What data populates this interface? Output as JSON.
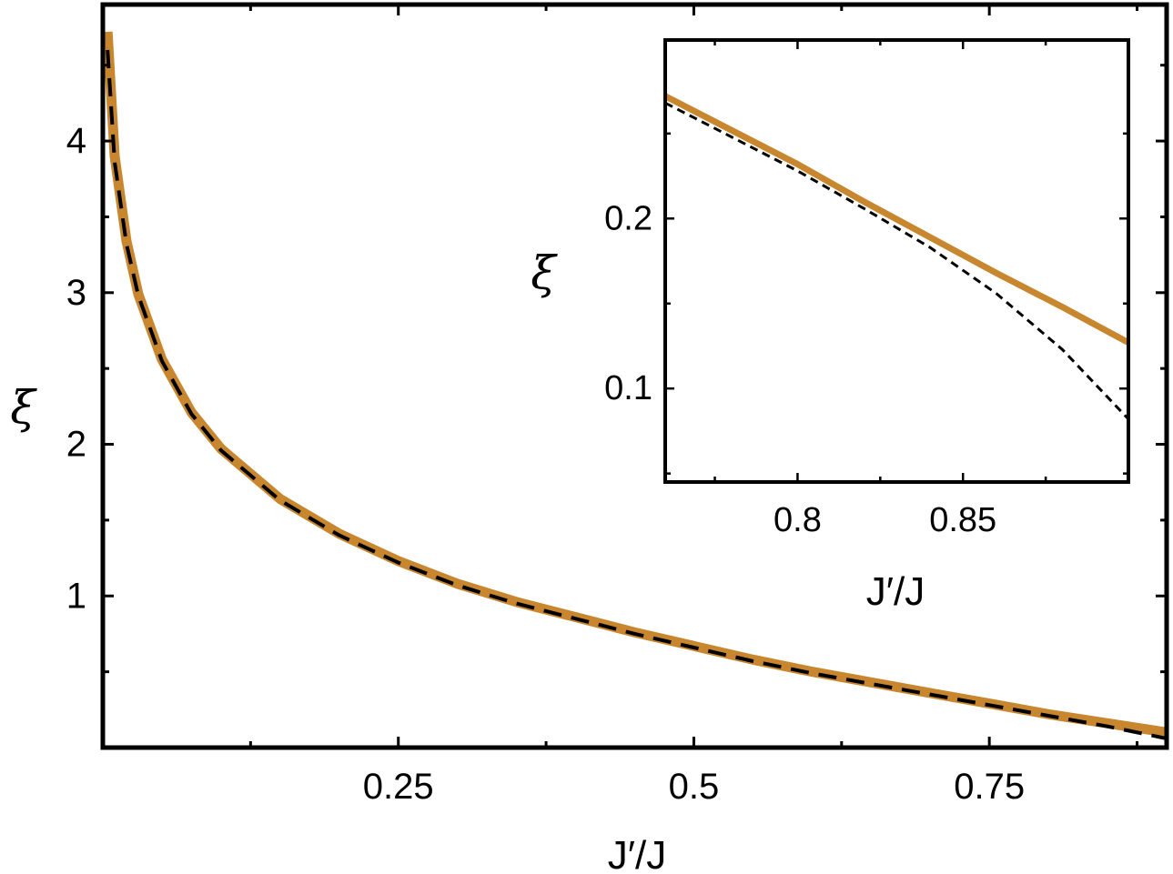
{
  "chart_data": [
    {
      "type": "line",
      "xlabel": "J′/J",
      "ylabel": "ξ",
      "xlim": [
        0.0,
        0.9
      ],
      "ylim": [
        0.0,
        4.9
      ],
      "x_ticks": [
        0.25,
        0.5,
        0.75
      ],
      "x_tick_labels": [
        "0.25",
        "0.5",
        "0.75"
      ],
      "y_ticks": [
        1,
        2,
        3,
        4
      ],
      "y_tick_labels": [
        "1",
        "2",
        "3",
        "4"
      ],
      "grid": false,
      "series": [
        {
          "style": "solid",
          "color": "#C8872F",
          "x": [
            0.004,
            0.01,
            0.02,
            0.03,
            0.05,
            0.075,
            0.1,
            0.15,
            0.2,
            0.25,
            0.3,
            0.35,
            0.4,
            0.45,
            0.5,
            0.55,
            0.6,
            0.65,
            0.7,
            0.75,
            0.8,
            0.85,
            0.9
          ],
          "y": [
            4.72,
            3.9,
            3.34,
            2.99,
            2.56,
            2.21,
            1.97,
            1.64,
            1.41,
            1.23,
            1.08,
            0.96,
            0.86,
            0.76,
            0.67,
            0.58,
            0.5,
            0.43,
            0.36,
            0.29,
            0.22,
            0.16,
            0.1
          ]
        },
        {
          "style": "dashed",
          "color": "#000000",
          "x": [
            0.004,
            0.01,
            0.02,
            0.03,
            0.05,
            0.075,
            0.1,
            0.15,
            0.2,
            0.25,
            0.3,
            0.35,
            0.4,
            0.45,
            0.5,
            0.55,
            0.6,
            0.65,
            0.7,
            0.75,
            0.8,
            0.85,
            0.9
          ],
          "y": [
            4.6,
            3.86,
            3.32,
            2.98,
            2.55,
            2.2,
            1.96,
            1.63,
            1.4,
            1.22,
            1.07,
            0.95,
            0.85,
            0.75,
            0.66,
            0.57,
            0.49,
            0.42,
            0.35,
            0.28,
            0.21,
            0.14,
            0.06
          ]
        }
      ]
    },
    {
      "type": "line",
      "xlabel": "J′/J",
      "ylabel": "ξ",
      "xlim": [
        0.76,
        0.9
      ],
      "ylim": [
        0.045,
        0.305
      ],
      "x_ticks": [
        0.8,
        0.85
      ],
      "x_tick_labels": [
        "0.8",
        "0.85"
      ],
      "y_ticks": [
        0.1,
        0.2
      ],
      "y_tick_labels": [
        "0.1",
        "0.2"
      ],
      "grid": false,
      "series": [
        {
          "style": "solid",
          "color": "#C8872F",
          "x": [
            0.76,
            0.78,
            0.8,
            0.82,
            0.84,
            0.86,
            0.88,
            0.9
          ],
          "y": [
            0.272,
            0.252,
            0.232,
            0.21,
            0.189,
            0.168,
            0.148,
            0.127
          ]
        },
        {
          "style": "dashed",
          "color": "#000000",
          "x": [
            0.76,
            0.78,
            0.8,
            0.82,
            0.84,
            0.86,
            0.88,
            0.9
          ],
          "y": [
            0.268,
            0.248,
            0.228,
            0.206,
            0.183,
            0.156,
            0.123,
            0.082
          ]
        }
      ]
    }
  ]
}
